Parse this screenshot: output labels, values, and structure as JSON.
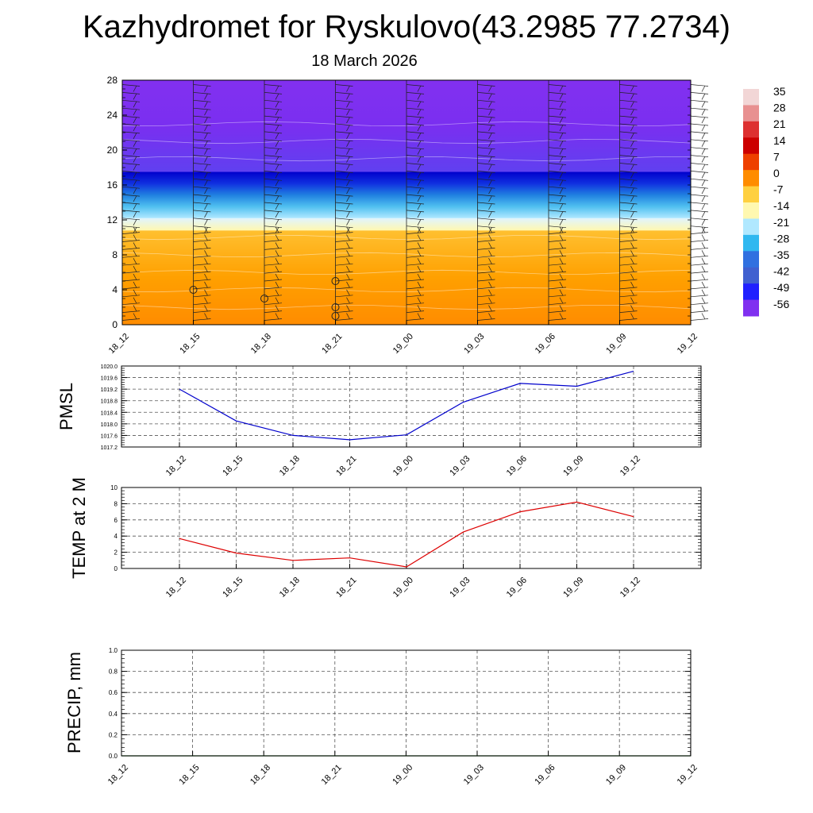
{
  "title": "Kazhydromet for Ryskulovo(43.2985 77.2734)",
  "subtitle": "18 March 2026",
  "colors": {
    "pmsl_line": "#0000cc",
    "temp_line": "#dd0000",
    "precip_line": "#006600",
    "grid": "#555555"
  },
  "chart_data": [
    {
      "type": "heatmap",
      "name": "upper-air-cross-section",
      "x_ticks": [
        "18_12",
        "18_15",
        "18_18",
        "18_21",
        "19_00",
        "19_03",
        "19_06",
        "19_09",
        "19_12"
      ],
      "y_ticks": [
        "0",
        "4",
        "8",
        "12",
        "16",
        "20",
        "24",
        "28"
      ],
      "ylim": [
        0,
        28
      ],
      "colorbar": {
        "labels": [
          "35",
          "28",
          "21",
          "14",
          "7",
          "0",
          "-7",
          "-14",
          "-21",
          "-28",
          "-35",
          "-42",
          "-49",
          "-56"
        ],
        "colors": [
          "#f2d6d6",
          "#e89090",
          "#dd3030",
          "#cc0000",
          "#ee4000",
          "#ff8c00",
          "#ffd040",
          "#fff8b0",
          "#b0e8ff",
          "#30b8f0",
          "#3070e0",
          "#4060d0",
          "#2020ff",
          "#8030f0"
        ]
      },
      "layers": [
        {
          "from": 0,
          "to": 10.8,
          "colors": [
            "#ff8c00",
            "#ffa000",
            "#ffc030"
          ]
        },
        {
          "from": 10.8,
          "to": 12.2,
          "colors": [
            "#fff8b0",
            "#e0f4ff"
          ]
        },
        {
          "from": 12.2,
          "to": 17.5,
          "colors": [
            "#b0e8ff",
            "#50c0f0",
            "#2080e0",
            "#1030e0",
            "#0000cc"
          ]
        },
        {
          "from": 17.5,
          "to": 28,
          "colors": [
            "#6040f0",
            "#7a2ff0",
            "#8230f0"
          ]
        }
      ],
      "cloud_markers": [
        {
          "x": "18_15",
          "y": 4
        },
        {
          "x": "18_18",
          "y": 3
        },
        {
          "x": "18_21",
          "y": 5
        },
        {
          "x": "18_21",
          "y": 2
        },
        {
          "x": "18_21",
          "y": 1
        }
      ]
    },
    {
      "type": "line",
      "name": "pmsl",
      "ylabel": "PMSL",
      "x": [
        "18_12",
        "18_15",
        "18_18",
        "18_21",
        "19_00",
        "19_03",
        "19_06",
        "19_09",
        "19_12"
      ],
      "values": [
        1019.2,
        1018.1,
        1017.6,
        1017.45,
        1017.62,
        1018.75,
        1019.4,
        1019.3,
        1019.82
      ],
      "y_ticks": [
        "1017.2",
        "1017.6",
        "1018.0",
        "1018.4",
        "1018.8",
        "1019.2",
        "1019.6",
        "1020.0"
      ],
      "ylim": [
        1017.2,
        1020.0
      ]
    },
    {
      "type": "line",
      "name": "temp-2m",
      "ylabel": "TEMP at 2 M",
      "x": [
        "18_12",
        "18_15",
        "18_18",
        "18_21",
        "19_00",
        "19_03",
        "19_06",
        "19_09",
        "19_12"
      ],
      "values": [
        3.7,
        1.9,
        1.0,
        1.3,
        0.2,
        4.5,
        7.0,
        8.2,
        6.4
      ],
      "y_ticks": [
        "0",
        "2",
        "4",
        "6",
        "8",
        "10"
      ],
      "ylim": [
        0,
        10
      ]
    },
    {
      "type": "line",
      "name": "precip",
      "ylabel": "PRECIP, mm",
      "x": [
        "18_12",
        "18_15",
        "18_18",
        "18_21",
        "19_00",
        "19_03",
        "19_06",
        "19_09",
        "19_12"
      ],
      "values": [
        0,
        0,
        0,
        0,
        0,
        0,
        0,
        0,
        0
      ],
      "y_ticks": [
        "0.0",
        "0.2",
        "0.4",
        "0.6",
        "0.8",
        "1.0"
      ],
      "ylim": [
        0,
        1
      ]
    }
  ]
}
